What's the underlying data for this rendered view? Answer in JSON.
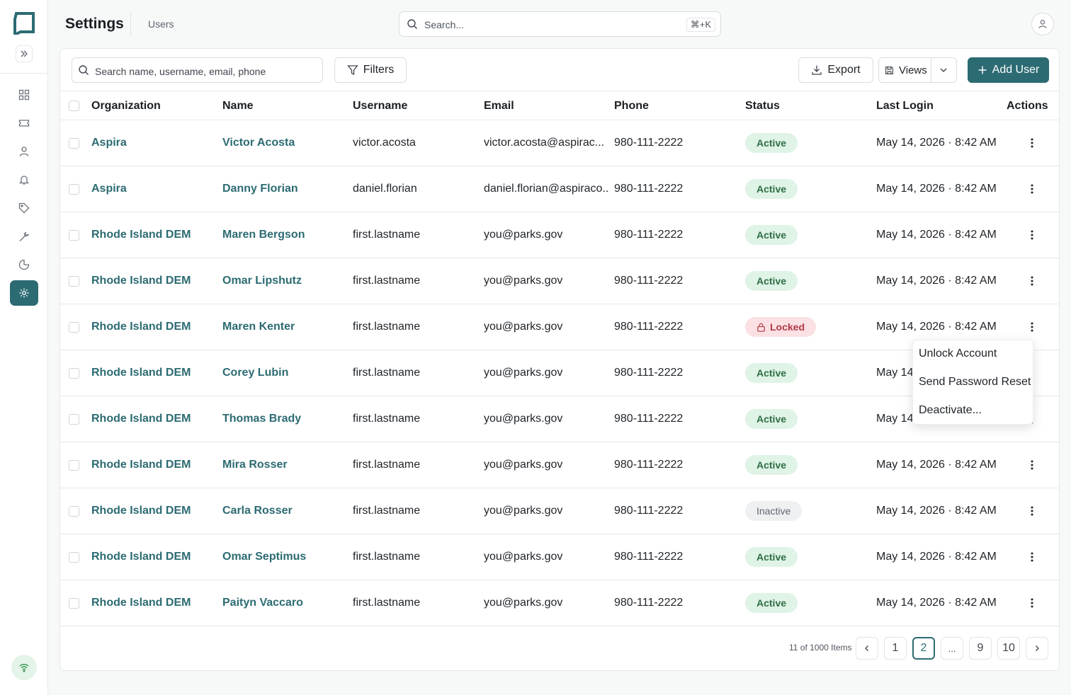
{
  "header": {
    "title": "Settings",
    "breadcrumb": "Users",
    "search_placeholder": "Search...",
    "shortcut": "⌘+K"
  },
  "toolbar": {
    "search_placeholder": "Search name, username, email, phone",
    "filters_label": "Filters",
    "export_label": "Export",
    "views_label": "Views",
    "add_user_label": "Add User"
  },
  "columns": [
    "Organization",
    "Name",
    "Username",
    "Email",
    "Phone",
    "Status",
    "Last Login",
    "Actions"
  ],
  "rows": [
    {
      "org": "Aspira",
      "name": "Victor Acosta",
      "username": "victor.acosta",
      "email": "victor.acosta@aspirac...",
      "phone": "980-111-2222",
      "status": "Active",
      "last_login": "May 14, 2026 · 8:42 AM"
    },
    {
      "org": "Aspira",
      "name": "Danny Florian",
      "username": "daniel.florian",
      "email": "daniel.florian@aspiraco...",
      "phone": "980-111-2222",
      "status": "Active",
      "last_login": "May 14, 2026 · 8:42 AM"
    },
    {
      "org": "Rhode Island DEM",
      "name": "Maren Bergson",
      "username": "first.lastname",
      "email": "you@parks.gov",
      "phone": "980-111-2222",
      "status": "Active",
      "last_login": "May 14, 2026 · 8:42 AM"
    },
    {
      "org": "Rhode Island DEM",
      "name": "Omar Lipshutz",
      "username": "first.lastname",
      "email": "you@parks.gov",
      "phone": "980-111-2222",
      "status": "Active",
      "last_login": "May 14, 2026 · 8:42 AM"
    },
    {
      "org": "Rhode Island DEM",
      "name": "Maren Kenter",
      "username": "first.lastname",
      "email": "you@parks.gov",
      "phone": "980-111-2222",
      "status": "Locked",
      "last_login": "May 14, 2026 · 8:42 AM"
    },
    {
      "org": "Rhode Island DEM",
      "name": "Corey Lubin",
      "username": "first.lastname",
      "email": "you@parks.gov",
      "phone": "980-111-2222",
      "status": "Active",
      "last_login": "May 14, 2026 · 8:42 AM"
    },
    {
      "org": "Rhode Island DEM",
      "name": "Thomas Brady",
      "username": "first.lastname",
      "email": "you@parks.gov",
      "phone": "980-111-2222",
      "status": "Active",
      "last_login": "May 14, 2026 · 8:42 AM"
    },
    {
      "org": "Rhode Island DEM",
      "name": "Mira Rosser",
      "username": "first.lastname",
      "email": "you@parks.gov",
      "phone": "980-111-2222",
      "status": "Active",
      "last_login": "May 14, 2026 · 8:42 AM"
    },
    {
      "org": "Rhode Island DEM",
      "name": "Carla Rosser",
      "username": "first.lastname",
      "email": "you@parks.gov",
      "phone": "980-111-2222",
      "status": "Inactive",
      "last_login": "May 14, 2026 · 8:42 AM"
    },
    {
      "org": "Rhode Island DEM",
      "name": "Omar Septimus",
      "username": "first.lastname",
      "email": "you@parks.gov",
      "phone": "980-111-2222",
      "status": "Active",
      "last_login": "May 14, 2026 · 8:42 AM"
    },
    {
      "org": "Rhode Island DEM",
      "name": "Paityn Vaccaro",
      "username": "first.lastname",
      "email": "you@parks.gov",
      "phone": "980-111-2222",
      "status": "Active",
      "last_login": "May 14, 2026 · 8:42 AM"
    }
  ],
  "action_menu": {
    "items": [
      "Unlock Account",
      "Send Password Reset",
      "Deactivate..."
    ]
  },
  "pagination": {
    "info": "11 of 1000 Items",
    "pages": [
      "1",
      "2",
      "...",
      "9",
      "10"
    ],
    "current": "2"
  },
  "colors": {
    "accent": "#2c6b72",
    "active_bg": "#dff3e6",
    "locked_bg": "#fbe1e3"
  },
  "icons": {
    "logo": "logo-icon",
    "nav": [
      "dashboard-icon",
      "ticket-icon",
      "user-icon",
      "bell-icon",
      "tag-icon",
      "wrench-icon",
      "chart-icon",
      "gear-icon"
    ],
    "status": "wifi-icon"
  }
}
